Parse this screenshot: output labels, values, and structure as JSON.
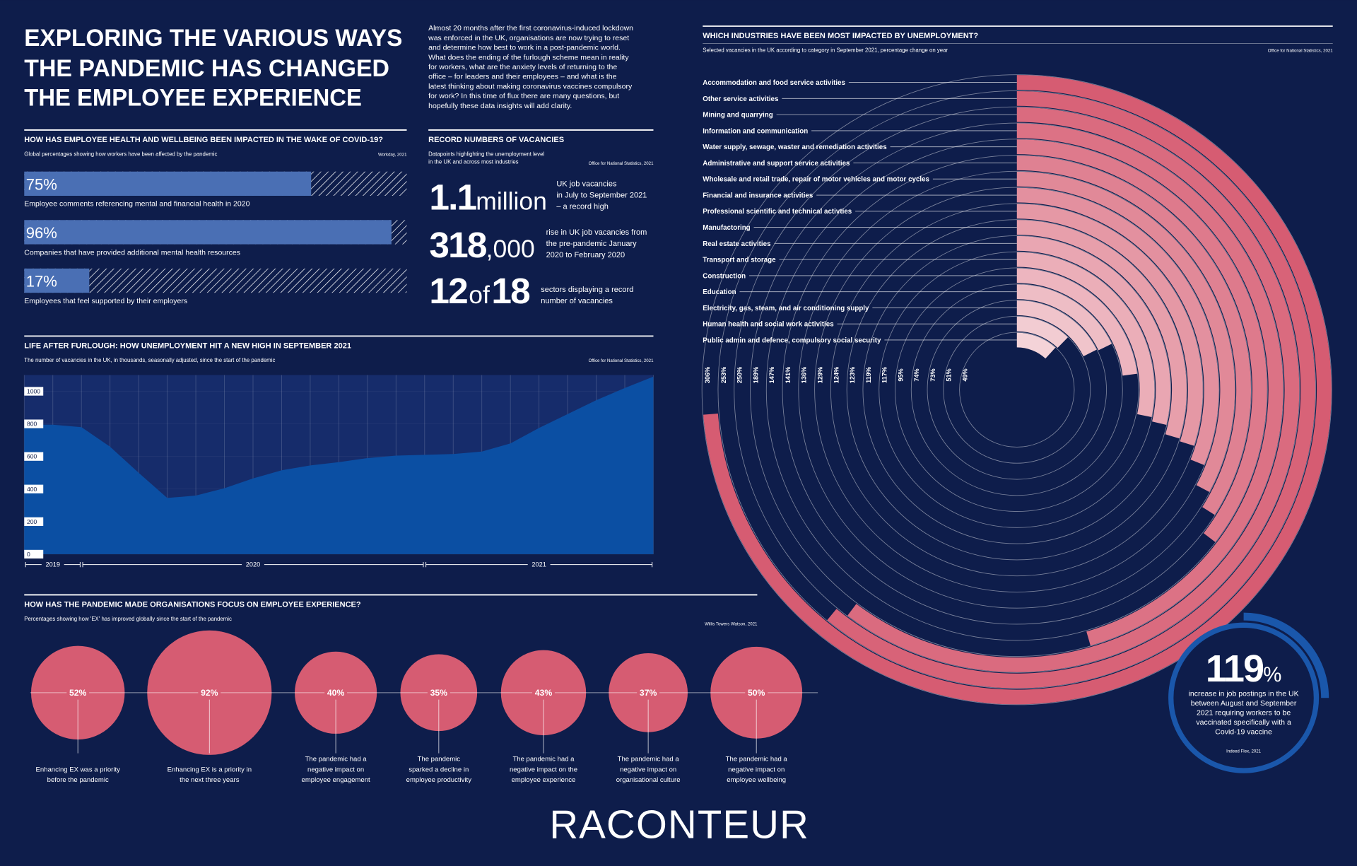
{
  "header": {
    "title": [
      "EXPLORING THE VARIOUS WAYS",
      "THE PANDEMIC HAS CHANGED",
      "THE EMPLOYEE EXPERIENCE"
    ],
    "intro": [
      "Almost 20 months after the first coronavirus-induced lockdown",
      "was enforced in the UK, organisations are now trying to reset",
      "and determine how best to work in a post-pandemic world.",
      "What does the ending of the furlough scheme mean in reality",
      "for workers, what are the anxiety levels of returning to the",
      "office – for leaders and their employees – and what is the",
      "latest thinking about making coronavirus vaccines compulsory",
      "for work? In this time of flux there are many questions, but",
      "hopefully these data insights will add clarity."
    ]
  },
  "chart_data": [
    {
      "type": "hbar",
      "title": "HOW HAS EMPLOYEE HEALTH AND WELLBEING BEEN IMPACTED IN THE WAKE OF COVID-19?",
      "subtitle": "Global percentages showing how workers have been affected by the pandemic",
      "source": "Workday, 2021",
      "categories": [
        "Employee comments referencing mental and financial health in 2020",
        "Companies that have provided additional mental health resources",
        "Employees that feel supported by their employers"
      ],
      "values": [
        75,
        96,
        17
      ],
      "value_labels": [
        "75%",
        "96%",
        "17%"
      ],
      "xlim": [
        0,
        100
      ],
      "color": "#4a6fb4"
    },
    {
      "type": "area",
      "title": "LIFE AFTER FURLOUGH: HOW UNEMPLOYMENT HIT A NEW HIGH IN SEPTEMBER 2021",
      "subtitle": "The number of vacancies in the UK, in thousands, seasonally adjusted, since the start of the pandemic",
      "source": "Office for National Statistics, 2021",
      "categories": [
        null,
        null,
        null,
        null,
        null,
        null,
        null,
        null,
        null,
        null,
        null,
        null,
        null,
        null,
        null,
        null,
        null,
        null,
        null,
        null,
        null,
        null,
        null
      ],
      "values": [
        795,
        795,
        780,
        660,
        500,
        345,
        360,
        405,
        465,
        515,
        545,
        565,
        590,
        605,
        610,
        615,
        630,
        680,
        775,
        860,
        945,
        1020,
        1090
      ],
      "ylim": [
        0,
        1100
      ],
      "yticks": [
        0,
        200,
        400,
        600,
        800,
        1000
      ],
      "x_groups": [
        {
          "label": "2019",
          "from": 0,
          "to": 2
        },
        {
          "label": "2020",
          "from": 2,
          "to": 14
        },
        {
          "label": "2021",
          "from": 14,
          "to": 22
        }
      ],
      "color": "#0b4fa3"
    },
    {
      "type": "bubble",
      "title": "HOW HAS THE PANDEMIC MADE ORGANISATIONS FOCUS ON EMPLOYEE EXPERIENCE?",
      "subtitle": "Percentages showing how 'EX' has improved globally since the start of the pandemic",
      "source": "Willis Towers Watson, 2021",
      "categories": [
        [
          "Enhancing EX was a priority",
          "before the pandemic"
        ],
        [
          "Enhancing EX is a priority in",
          "the next three years"
        ],
        [
          "The pandemic had a",
          "negative impact on",
          "employee engagement"
        ],
        [
          "The pandemic",
          "sparked a decline in",
          "employee productivity"
        ],
        [
          "The pandemic had a",
          "negative impact on the",
          "employee experience"
        ],
        [
          "The pandemic had a",
          "negative impact on",
          "organisational culture"
        ],
        [
          "The pandemic had a",
          "negative impact on",
          "employee wellbeing"
        ]
      ],
      "values": [
        52,
        92,
        40,
        35,
        43,
        37,
        50
      ],
      "value_labels": [
        "52%",
        "92%",
        "40%",
        "35%",
        "43%",
        "37%",
        "50%"
      ],
      "color": "#d65c72"
    },
    {
      "type": "radial",
      "title": "WHICH INDUSTRIES HAVE BEEN MOST IMPACTED BY UNEMPLOYMENT?",
      "subtitle": "Selected vacancies in the UK according to category in September 2021, percentage change on year",
      "source": "Office for National Statistics, 2021",
      "categories": [
        "Accommodation and food service activities",
        "Other service activities",
        "Mining and quarrying",
        "Information and communication",
        "Water supply, sewage, waster and remediation activities",
        "Administrative and support service activities",
        "Wholesale and retail trade, repair of motor vehicles and motor cycles",
        "Financial and insurance activities",
        "Professional scientific and technical activties",
        "Manufactoring",
        "Real estate activities",
        "Transport and storage",
        "Construction",
        "Education",
        "Electricity, gas, steam, and air conditioning supply",
        "Human health and social work activities",
        "Public admin and defence, compulsory social security"
      ],
      "values": [
        306,
        253,
        250,
        189,
        147,
        141,
        136,
        129,
        124,
        123,
        119,
        117,
        95,
        74,
        73,
        51,
        49
      ],
      "value_labels": [
        "306%",
        "253%",
        "250%",
        "189%",
        "147%",
        "141%",
        "136%",
        "129%",
        "124%",
        "123%",
        "119%",
        "117%",
        "95%",
        "74%",
        "73%",
        "51%",
        "49%"
      ],
      "anglim": [
        0,
        415
      ],
      "colors": [
        "#d65c72",
        "#f4d3d8"
      ]
    }
  ],
  "vacancies": {
    "title": "RECORD NUMBERS OF VACANCIES",
    "subtitle": [
      "Datapoints highlighting the unemployment level",
      "in the UK and across most industries"
    ],
    "source": "Office for National Statistics, 2021",
    "stats": [
      {
        "figure": [
          "1.1",
          "million"
        ],
        "text": [
          "UK job vacancies",
          "in July to September 2021",
          "– a record high"
        ]
      },
      {
        "figure": [
          "318",
          ",000"
        ],
        "text": [
          "rise in UK job vacancies from",
          "the pre-pandemic January",
          "2020 to February 2020"
        ]
      },
      {
        "figure": [
          "12",
          "of",
          "18"
        ],
        "text": [
          "sectors displaying a record",
          "number of vacancies"
        ]
      }
    ]
  },
  "callout": {
    "figure": "119",
    "unit": "%",
    "text": [
      "increase in job postings in the UK",
      "between August and September",
      "2021 requiring workers to be",
      "vaccinated specifically with a",
      "Covid-19 vaccine"
    ],
    "source": "Indeed Flex, 2021"
  },
  "logo": "RACONTEUR"
}
